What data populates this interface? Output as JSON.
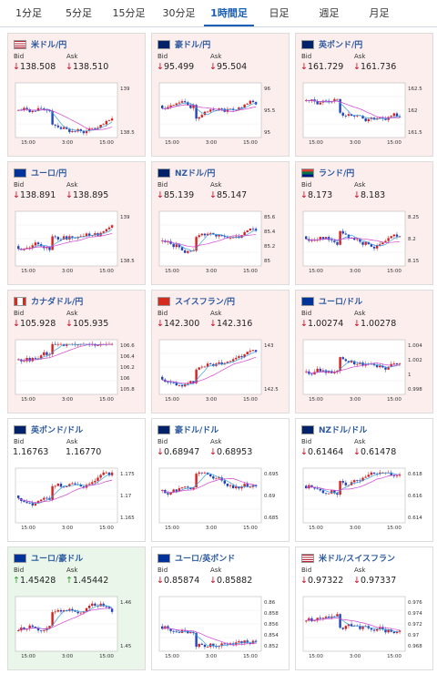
{
  "tabs": [
    "1分足",
    "5分足",
    "15分足",
    "30分足",
    "1時間足",
    "日足",
    "週足",
    "月足"
  ],
  "active_tab": "1時間足",
  "labels": {
    "bid": "Bid",
    "ask": "Ask"
  },
  "colors": {
    "down_arrow": "#d0021b",
    "up_arrow": "#2e9b2e",
    "link": "#2c5aa0"
  },
  "cards": [
    {
      "pair": "米ドル/円",
      "flag": "us-flag",
      "bid": "138.508",
      "ask": "138.510",
      "bid_dir": "down",
      "ask_dir": "down",
      "bg": "down",
      "y_ticks": [
        "139",
        "138.5"
      ],
      "x_ticks": [
        "15:00",
        "3:00",
        "15:00"
      ]
    },
    {
      "pair": "豪ドル/円",
      "flag": "au-flag",
      "bid": "95.499",
      "ask": "95.504",
      "bid_dir": "down",
      "ask_dir": "down",
      "bg": "down",
      "y_ticks": [
        "96",
        "95.5",
        "95"
      ],
      "x_ticks": [
        "15:00",
        "3:00",
        "15:00"
      ]
    },
    {
      "pair": "英ポンド/円",
      "flag": "gb-flag",
      "bid": "161.729",
      "ask": "161.736",
      "bid_dir": "down",
      "ask_dir": "down",
      "bg": "down",
      "y_ticks": [
        "162.5",
        "162",
        "161.5"
      ],
      "x_ticks": [
        "15:00",
        "3:00",
        "15:00"
      ]
    },
    {
      "pair": "ユーロ/円",
      "flag": "eu-flag",
      "bid": "138.891",
      "ask": "138.895",
      "bid_dir": "down",
      "ask_dir": "down",
      "bg": "down",
      "y_ticks": [
        "139",
        "138.5"
      ],
      "x_ticks": [
        "15:00",
        "3:00",
        "15:00"
      ]
    },
    {
      "pair": "NZドル/円",
      "flag": "nz-flag",
      "bid": "85.139",
      "ask": "85.147",
      "bid_dir": "down",
      "ask_dir": "down",
      "bg": "down",
      "y_ticks": [
        "85.6",
        "85.4",
        "85.2",
        "85"
      ],
      "x_ticks": [
        "15:00",
        "3:00",
        "15:00"
      ]
    },
    {
      "pair": "ランド/円",
      "flag": "za-flag",
      "bid": "8.173",
      "ask": "8.183",
      "bid_dir": "down",
      "ask_dir": "down",
      "bg": "down",
      "y_ticks": [
        "8.25",
        "8.2",
        "8.15"
      ],
      "x_ticks": [
        "15:00",
        "3:00",
        "15:00"
      ]
    },
    {
      "pair": "カナダドル/円",
      "flag": "ca-flag",
      "bid": "105.928",
      "ask": "105.935",
      "bid_dir": "down",
      "ask_dir": "down",
      "bg": "down",
      "y_ticks": [
        "106.6",
        "106.4",
        "106.2",
        "106",
        "105.8"
      ],
      "x_ticks": [
        "15:00",
        "3:00",
        "15:00"
      ]
    },
    {
      "pair": "スイスフラン/円",
      "flag": "ch-flag",
      "bid": "142.300",
      "ask": "142.316",
      "bid_dir": "down",
      "ask_dir": "down",
      "bg": "down",
      "y_ticks": [
        "143",
        "142.5"
      ],
      "x_ticks": [
        "15:00",
        "3:00",
        "15:00"
      ]
    },
    {
      "pair": "ユーロ/ドル",
      "flag": "eu-flag",
      "bid": "1.00274",
      "ask": "1.00278",
      "bid_dir": "down",
      "ask_dir": "down",
      "bg": "down",
      "y_ticks": [
        "1.004",
        "1.002",
        "1",
        "0.998"
      ],
      "x_ticks": [
        "15:00",
        "3:00",
        "15:00"
      ]
    },
    {
      "pair": "英ポンド/ドル",
      "flag": "gb-flag",
      "bid": "1.16763",
      "ask": "1.16770",
      "bid_dir": "none",
      "ask_dir": "none",
      "bg": "neutral",
      "y_ticks": [
        "1.175",
        "1.17",
        "1.165"
      ],
      "x_ticks": [
        "15:00",
        "3:00",
        "15:00"
      ]
    },
    {
      "pair": "豪ドル/ドル",
      "flag": "au-flag",
      "bid": "0.68947",
      "ask": "0.68953",
      "bid_dir": "down",
      "ask_dir": "down",
      "bg": "neutral",
      "y_ticks": [
        "0.695",
        "0.69",
        "0.685"
      ],
      "x_ticks": [
        "15:00",
        "3:00",
        "15:00"
      ]
    },
    {
      "pair": "NZドル/ドル",
      "flag": "nz-flag",
      "bid": "0.61464",
      "ask": "0.61478",
      "bid_dir": "down",
      "ask_dir": "down",
      "bg": "neutral",
      "y_ticks": [
        "0.618",
        "0.616",
        "0.614"
      ],
      "x_ticks": [
        "15:00",
        "3:00",
        "15:00"
      ]
    },
    {
      "pair": "ユーロ/豪ドル",
      "flag": "eu-flag",
      "bid": "1.45428",
      "ask": "1.45442",
      "bid_dir": "up",
      "ask_dir": "up",
      "bg": "up",
      "y_ticks": [
        "1.46",
        "1.45"
      ],
      "x_ticks": [
        "15:00",
        "3:00",
        "15:00"
      ]
    },
    {
      "pair": "ユーロ/英ポンド",
      "flag": "eu-flag",
      "bid": "0.85874",
      "ask": "0.85882",
      "bid_dir": "down",
      "ask_dir": "down",
      "bg": "neutral",
      "y_ticks": [
        "0.86",
        "0.858",
        "0.856",
        "0.854",
        "0.852"
      ],
      "x_ticks": [
        "15:00",
        "3:00",
        "15:00"
      ]
    },
    {
      "pair": "米ドル/スイスフラン",
      "flag": "us-flag",
      "bid": "0.97322",
      "ask": "0.97337",
      "bid_dir": "down",
      "ask_dir": "down",
      "bg": "neutral",
      "y_ticks": [
        "0.976",
        "0.974",
        "0.972",
        "0.97",
        "0.968"
      ],
      "x_ticks": [
        "15:00",
        "3:00",
        "15:00"
      ]
    }
  ]
}
